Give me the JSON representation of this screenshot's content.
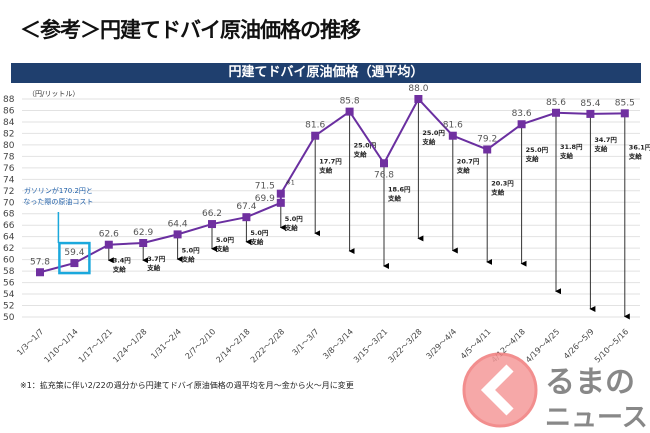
{
  "page": {
    "title": "＜参考＞円建てドバイ原油価格の推移",
    "note": "※1：拡充策に伴い2/22の週分から円建てドバイ原油価格の週平均を月～金から火～月に変更",
    "logo_text": "くるまのニュース"
  },
  "chart_data": {
    "type": "line",
    "title": "円建てドバイ原油価格（週平均）",
    "ylabel": "（円/リットル）",
    "xlabel": "",
    "ylim": [
      50,
      88
    ],
    "ytick_step": 2,
    "grid": true,
    "categories": [
      "1/3～1/7",
      "1/10～1/14",
      "1/17～1/21",
      "1/24～1/28",
      "1/31～2/4",
      "2/7～2/10",
      "2/14～2/18",
      "2/22～2/28",
      "3/1～3/7",
      "3/8～3/14",
      "3/15～3/21",
      "3/22～3/28",
      "3/29～4/4",
      "4/5～4/11",
      "4/12～4/18",
      "4/19～4/25",
      "4/26～5/9",
      "5/10～5/16"
    ],
    "points": [
      {
        "i": 0,
        "v": 57.8,
        "label": "57.8"
      },
      {
        "i": 1,
        "v": 59.4,
        "label": "59.4"
      },
      {
        "i": 2,
        "v": 62.6,
        "label": "62.6",
        "sub": 3.4
      },
      {
        "i": 3,
        "v": 62.9,
        "label": "62.9",
        "sub": 3.7
      },
      {
        "i": 4,
        "v": 64.4,
        "label": "64.4",
        "sub": 5.0
      },
      {
        "i": 5,
        "v": 66.2,
        "label": "66.2",
        "sub": 5.0
      },
      {
        "i": 6,
        "v": 67.4,
        "label": "67.4",
        "sub": 5.0
      },
      {
        "i": 7,
        "v": 69.9,
        "label": "69.9",
        "sub": 5.0
      },
      {
        "i": 7,
        "v": 71.5,
        "label": "71.5",
        "mark": "※1"
      },
      {
        "i": 8,
        "v": 81.6,
        "label": "81.6",
        "sub": 17.7
      },
      {
        "i": 9,
        "v": 85.8,
        "label": "85.8",
        "sub": 25.0
      },
      {
        "i": 10,
        "v": 76.8,
        "label": "76.8",
        "sub": 18.6
      },
      {
        "i": 11,
        "v": 88.0,
        "label": "88.0",
        "sub": 25.0
      },
      {
        "i": 12,
        "v": 81.6,
        "label": "81.6",
        "sub": 20.7
      },
      {
        "i": 13,
        "v": 79.2,
        "label": "79.2",
        "sub": 20.3
      },
      {
        "i": 14,
        "v": 83.6,
        "label": "83.6",
        "sub": 25.0
      },
      {
        "i": 15,
        "v": 85.6,
        "label": "85.6",
        "sub": 31.8
      },
      {
        "i": 16,
        "v": 85.4,
        "label": "85.4",
        "sub": 34.7
      },
      {
        "i": 17,
        "v": 85.5,
        "label": "85.5",
        "sub": 36.1
      }
    ],
    "sub_unit": "円",
    "sub_word": "支給",
    "annotation": {
      "text1": "ガソリンが170.2円と",
      "text2": "なった際の原油コスト",
      "target_index": 1
    },
    "colors": {
      "line": "#6a2fa0",
      "marker": "#7030a0",
      "callout": "#1aa8dc",
      "callout_text": "#1f5fa8",
      "header": "#1f3f6e"
    }
  }
}
